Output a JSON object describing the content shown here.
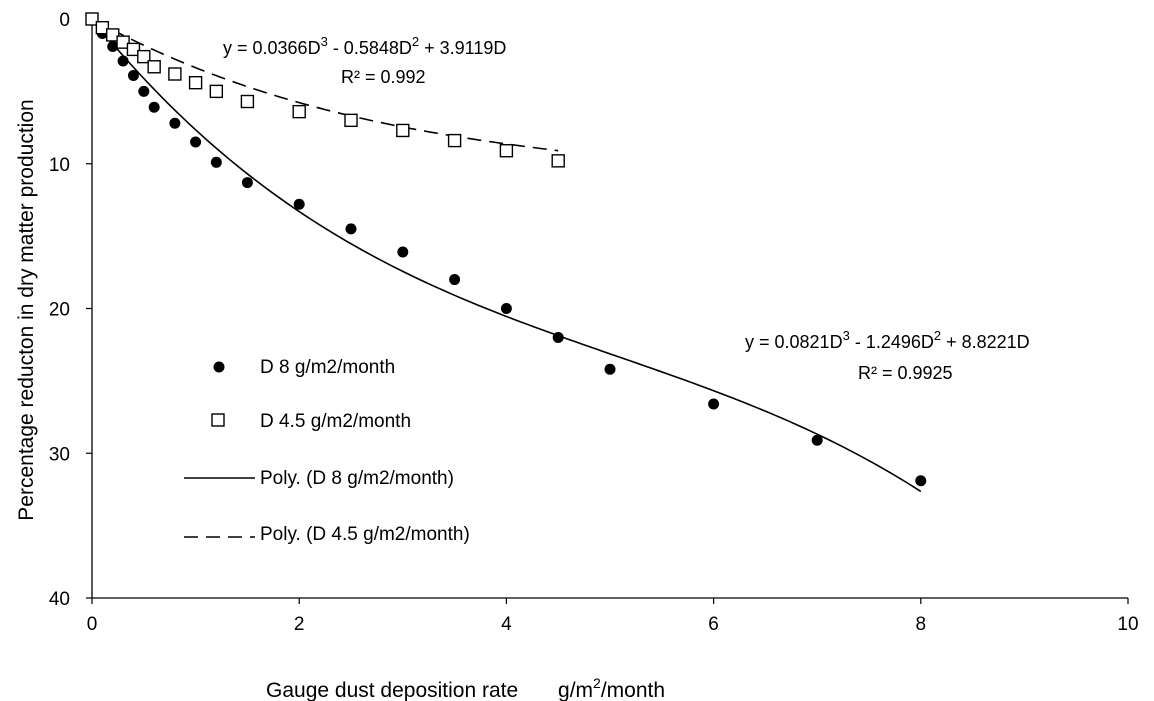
{
  "chart_data": {
    "type": "scatter",
    "title": "",
    "xlabel": "Gauge dust deposition rate",
    "xlabel_unit_prefix": "g/m",
    "xlabel_unit_sup": "2",
    "xlabel_unit_suffix": "/month",
    "ylabel": "Percentage reducton in dry matter production",
    "xlim": [
      0,
      10
    ],
    "ylim": [
      0,
      40
    ],
    "y_inverted": true,
    "x_ticks": [
      "0",
      "2",
      "4",
      "6",
      "8",
      "10"
    ],
    "y_ticks": [
      "0",
      "10",
      "20",
      "30",
      "40"
    ],
    "grid": false,
    "legend_position": "left-center",
    "series": [
      {
        "name": "D 8 g/m2/month",
        "marker": "filled-circle",
        "points": [
          [
            0,
            0
          ],
          [
            0.1,
            1.0
          ],
          [
            0.2,
            1.9
          ],
          [
            0.3,
            2.9
          ],
          [
            0.4,
            3.9
          ],
          [
            0.5,
            5.0
          ],
          [
            0.6,
            6.1
          ],
          [
            0.8,
            7.2
          ],
          [
            1.0,
            8.5
          ],
          [
            1.2,
            9.9
          ],
          [
            1.5,
            11.3
          ],
          [
            2.0,
            12.8
          ],
          [
            2.5,
            14.5
          ],
          [
            3.0,
            16.1
          ],
          [
            3.5,
            18.0
          ],
          [
            4.0,
            20.0
          ],
          [
            4.5,
            22.0
          ],
          [
            5.0,
            24.2
          ],
          [
            6.0,
            26.6
          ],
          [
            7.0,
            29.1
          ],
          [
            8.0,
            31.9
          ]
        ]
      },
      {
        "name": "D 4.5 g/m2/month",
        "marker": "open-square",
        "points": [
          [
            0,
            0.0
          ],
          [
            0.1,
            0.6
          ],
          [
            0.2,
            1.1
          ],
          [
            0.3,
            1.6
          ],
          [
            0.4,
            2.1
          ],
          [
            0.5,
            2.6
          ],
          [
            0.6,
            3.3
          ],
          [
            0.8,
            3.8
          ],
          [
            1.0,
            4.4
          ],
          [
            1.2,
            5.0
          ],
          [
            1.5,
            5.7
          ],
          [
            2.0,
            6.4
          ],
          [
            2.5,
            7.0
          ],
          [
            3.0,
            7.7
          ],
          [
            3.5,
            8.4
          ],
          [
            4.0,
            9.1
          ],
          [
            4.5,
            9.8
          ]
        ]
      },
      {
        "name": "Poly. (D 8 g/m2/month)",
        "line": "solid",
        "fit": {
          "a3": 0.0821,
          "a2": -1.2496,
          "a1": 8.8221,
          "x_range": [
            0,
            8
          ]
        }
      },
      {
        "name": "Poly. (D 4.5 g/m2/month)",
        "line": "dashed",
        "fit": {
          "a3": 0.0366,
          "a2": -0.5848,
          "a1": 3.9119,
          "x_range": [
            0,
            4.5
          ]
        }
      }
    ],
    "annotations": [
      {
        "id": "eq_small",
        "eq_parts": [
          [
            "y = 0.0366D",
            ""
          ],
          [
            "3",
            "sup"
          ],
          [
            " - 0.5848D",
            ""
          ],
          [
            "2",
            "sup"
          ],
          [
            " + 3.9119D",
            ""
          ]
        ],
        "r2": "R² = 0.992"
      },
      {
        "id": "eq_large",
        "eq_parts": [
          [
            "y = 0.0821D",
            ""
          ],
          [
            "3",
            "sup"
          ],
          [
            " - 1.2496D",
            ""
          ],
          [
            "2",
            "sup"
          ],
          [
            " + 8.8221D",
            ""
          ]
        ],
        "r2": "R² = 0.9925"
      }
    ]
  }
}
